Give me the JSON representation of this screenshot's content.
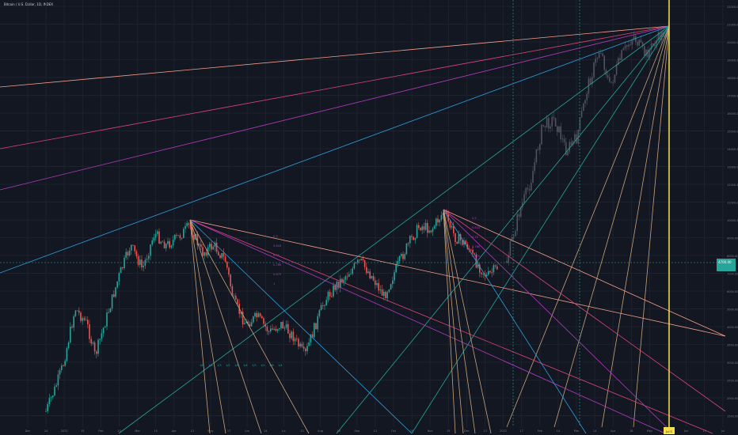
{
  "header": {
    "symbol_title": "Bitcoin / U.S. Dollar, 1D, INDEX"
  },
  "colors": {
    "background": "#131722",
    "grid": "#1e222d",
    "up": "#26a69a",
    "down": "#ef5350",
    "ghost": "#787b86",
    "vline_yellow": "#f5e050",
    "fan_orange": "#f6a08c",
    "fan_pink": "#e0457b",
    "fan_purple": "#b23bbd",
    "fan_blue": "#2f9edb",
    "fan_teal": "#26a69a",
    "fan_tan": "#c8a27a",
    "price_tag": "#26a69a"
  },
  "chart_data": {
    "type": "candlestick",
    "title": "Bitcoin / U.S. Dollar, 1D, INDEX",
    "y_scale": "log",
    "y_ticks": [
      "22000.00",
      "21000.00",
      "20000.00",
      "19000.00",
      "18000.00",
      "17000.00",
      "16000.00",
      "15000.00",
      "14000.00",
      "13000.00",
      "12000.00",
      "11000.00",
      "10000.00",
      "9000.00",
      "8000.00",
      "7000.00",
      "6000.00",
      "5000.00",
      "4000.00",
      "3500.00",
      "3000.00",
      "2500.00",
      "2000.00",
      "1500.00"
    ],
    "x_ticks": [
      "Dec",
      "24",
      "2021",
      "15",
      "Feb",
      "15",
      "Mar",
      "15",
      "Apr",
      "12",
      "May",
      "17",
      "Jun",
      "14",
      "Jul",
      "12",
      "Aug",
      "16",
      "Sep",
      "13",
      "Oct",
      "18",
      "Nov",
      "15",
      "Dec",
      "13",
      "2022",
      "17",
      "Feb",
      "14",
      "Mar",
      "14",
      "Apr",
      "18",
      "May",
      "16",
      "Jun",
      "13",
      "Jul"
    ],
    "cursor_x_label": "Jul 5",
    "current_price_label": "4700.00",
    "fan_labels": [
      "0.5",
      "0.618",
      "0.75",
      "0.786",
      "0.875",
      "1"
    ],
    "labels_bottom": [
      "1/8",
      "1/4",
      "1/3",
      "1/2",
      "1/8",
      "1/4",
      "1/3",
      "1/2",
      "1/8",
      "1/4"
    ]
  }
}
